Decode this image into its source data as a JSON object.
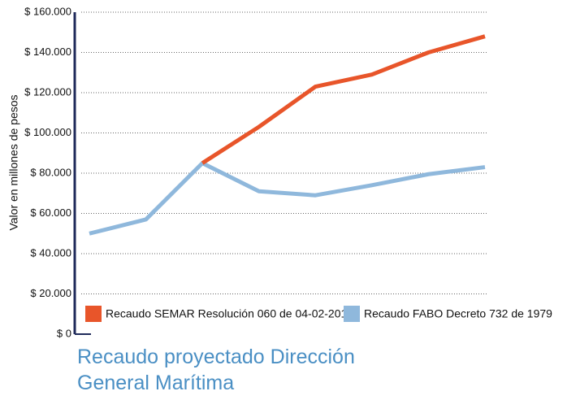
{
  "chart_data": {
    "type": "line",
    "title": "Recaudo proyectado Dirección General Marítima",
    "y_label": "Valor en millones de pesos",
    "categories": [
      null,
      null,
      null,
      null,
      null,
      null,
      null,
      null
    ],
    "series": [
      {
        "name": "Recaudo SEMAR Resolución 060 de 04-02-2014",
        "color": "#e8552a",
        "values": [
          null,
          null,
          85000,
          103000,
          123000,
          129000,
          140000,
          148000
        ]
      },
      {
        "name": "Recaudo FABO Decreto 732 de 1979",
        "color": "#8fb8dc",
        "values": [
          50000,
          57000,
          85000,
          71000,
          69000,
          74000,
          79500,
          83000
        ]
      }
    ],
    "ylim": [
      0,
      160000
    ],
    "yticks": [
      {
        "value": 0,
        "label": "$ 0"
      },
      {
        "value": 20000,
        "label": "$ 20.000"
      },
      {
        "value": 40000,
        "label": "$ 40.000"
      },
      {
        "value": 60000,
        "label": "$ 60.000"
      },
      {
        "value": 80000,
        "label": "$ 80.000"
      },
      {
        "value": 100000,
        "label": "$ 100.000"
      },
      {
        "value": 120000,
        "label": "$ 120.000"
      },
      {
        "value": 140000,
        "label": "$ 140.000"
      },
      {
        "value": 160000,
        "label": "$ 160.000"
      }
    ],
    "grid": true,
    "legend": "bottom"
  }
}
